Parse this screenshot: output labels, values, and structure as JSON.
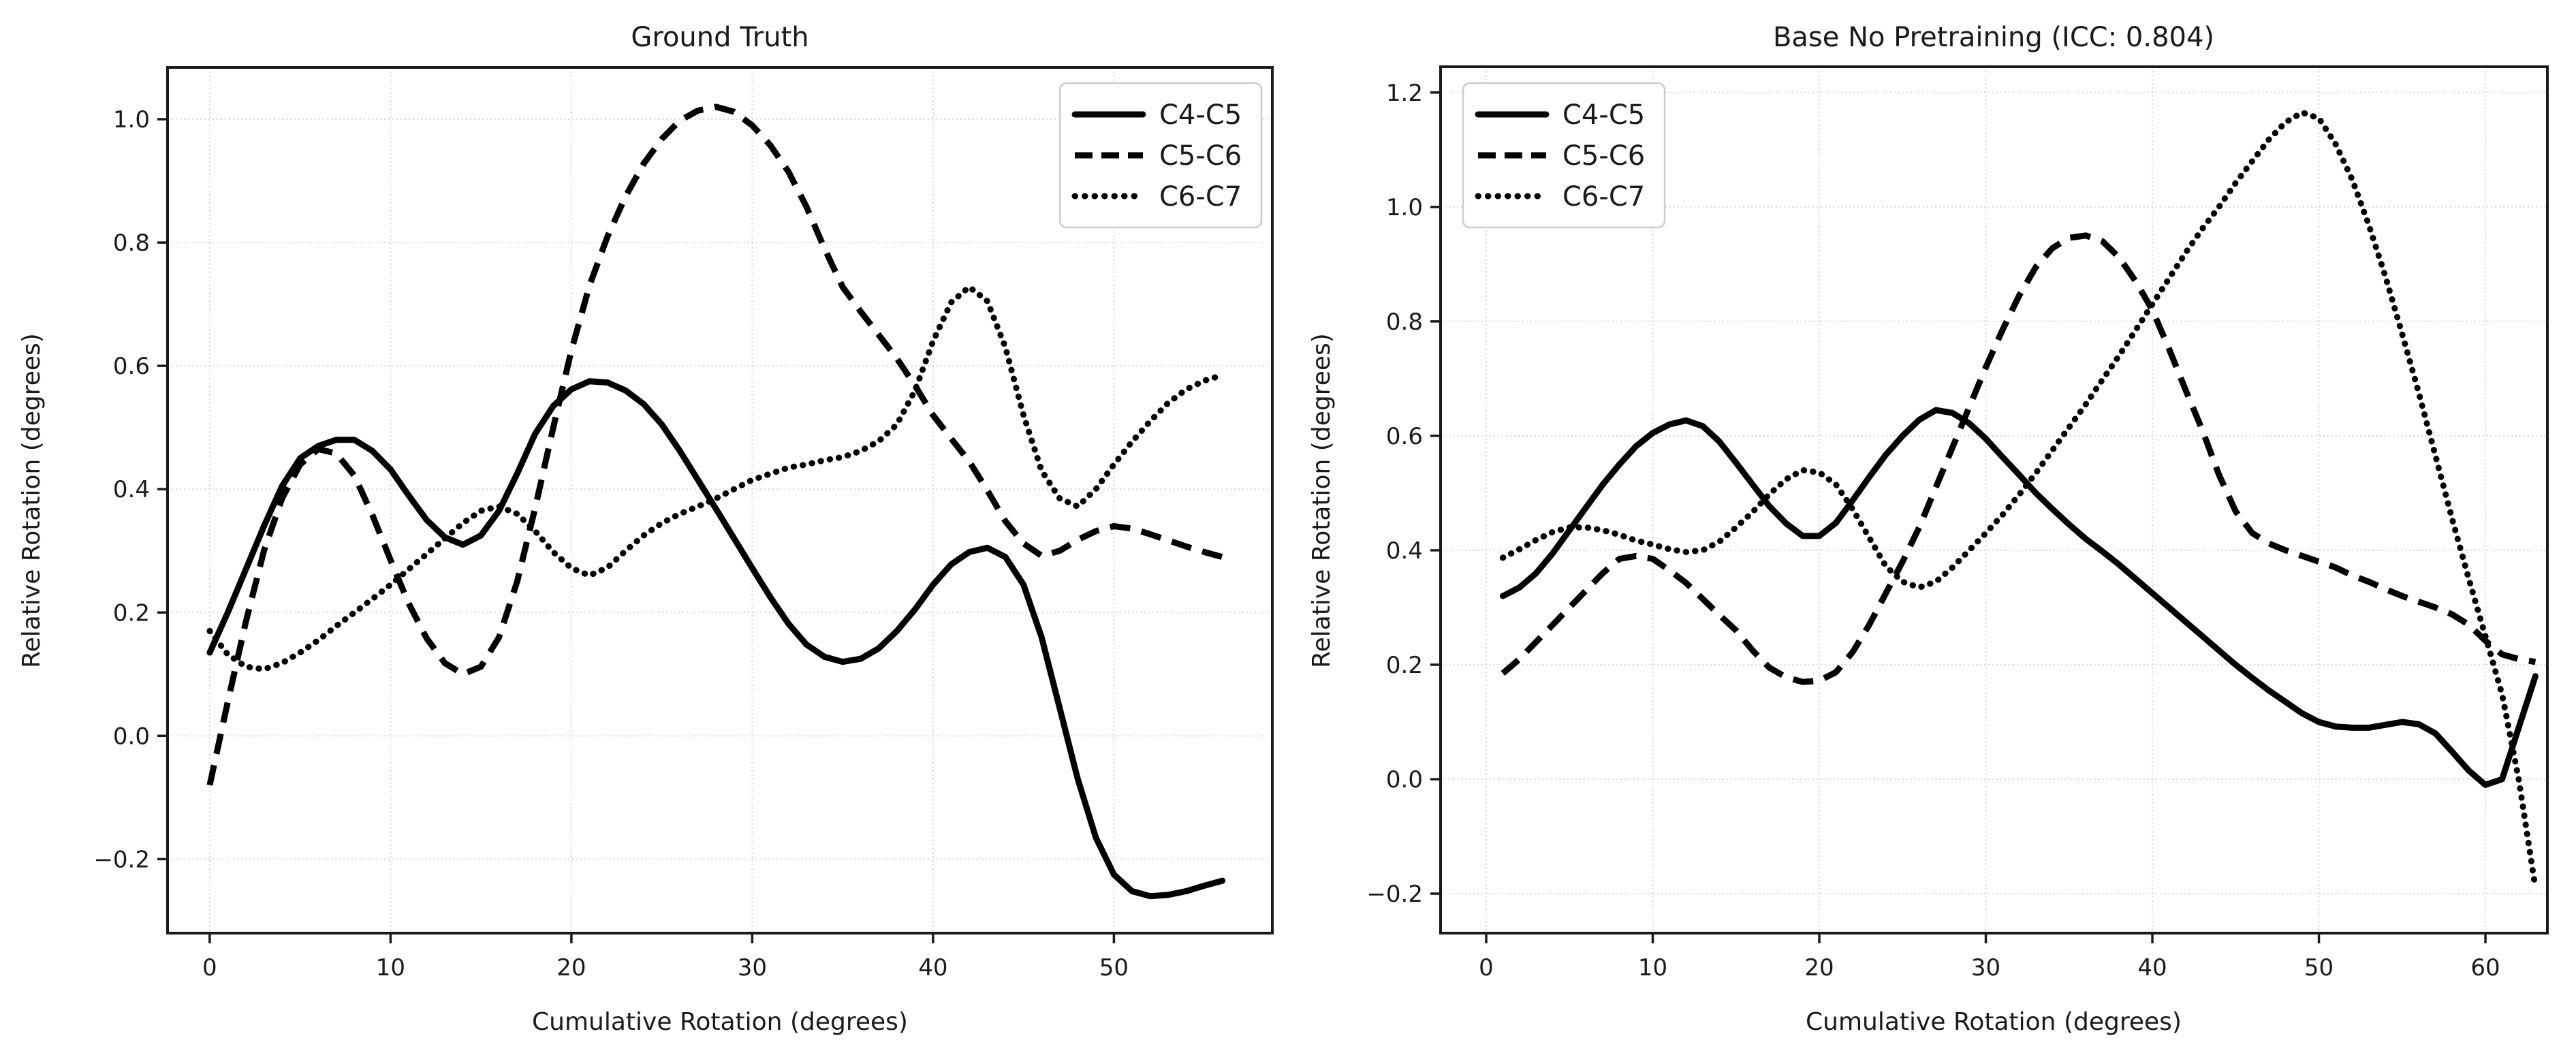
{
  "figure": {
    "background": "#ffffff",
    "text_color": "#1a1a1a",
    "line_color": "#000000",
    "grid_color": "#d7d7d7",
    "spine_color": "#1a1a1a",
    "legend_border_color": "#cccccc"
  },
  "chart_data": [
    {
      "type": "line",
      "title": "Ground Truth",
      "xlabel": "Cumulative Rotation (degrees)",
      "ylabel": "Relative Rotation (degrees)",
      "grid": true,
      "legend_position": "top-right",
      "xlim": [
        -2.33,
        58.76
      ],
      "ylim": [
        -0.32,
        1.084
      ],
      "xticks": [
        0,
        10,
        20,
        30,
        40,
        50
      ],
      "xtick_labels": [
        "0",
        "10",
        "20",
        "30",
        "40",
        "50"
      ],
      "yticks": [
        -0.2,
        0.0,
        0.2,
        0.4,
        0.6,
        0.8,
        1.0
      ],
      "ytick_labels": [
        "−0.2",
        "0.0",
        "0.2",
        "0.4",
        "0.6",
        "0.8",
        "1.0"
      ],
      "series": [
        {
          "name": "C4-C5",
          "style": "solid",
          "x": [
            0,
            1,
            2,
            3,
            4,
            5,
            6,
            7,
            8,
            9,
            10,
            11,
            12,
            13,
            14,
            15,
            16,
            17,
            18,
            19,
            20,
            21,
            22,
            23,
            24,
            25,
            26,
            27,
            28,
            29,
            30,
            31,
            32,
            33,
            34,
            35,
            36,
            37,
            38,
            39,
            40,
            41,
            42,
            43,
            44,
            45,
            46,
            47,
            48,
            49,
            50,
            51,
            52,
            53,
            54,
            55,
            56
          ],
          "y": [
            0.135,
            0.2,
            0.27,
            0.34,
            0.405,
            0.45,
            0.47,
            0.48,
            0.48,
            0.462,
            0.432,
            0.39,
            0.35,
            0.322,
            0.31,
            0.325,
            0.365,
            0.425,
            0.49,
            0.535,
            0.562,
            0.575,
            0.573,
            0.56,
            0.538,
            0.505,
            0.462,
            0.415,
            0.368,
            0.32,
            0.272,
            0.225,
            0.182,
            0.148,
            0.128,
            0.12,
            0.125,
            0.142,
            0.17,
            0.205,
            0.245,
            0.278,
            0.298,
            0.305,
            0.29,
            0.245,
            0.16,
            0.045,
            -0.07,
            -0.165,
            -0.225,
            -0.252,
            -0.26,
            -0.258,
            -0.252,
            -0.243,
            -0.235
          ]
        },
        {
          "name": "C5-C6",
          "style": "dashed",
          "x": [
            0,
            1,
            2,
            3,
            4,
            5,
            6,
            7,
            8,
            9,
            10,
            11,
            12,
            13,
            14,
            15,
            16,
            17,
            18,
            19,
            20,
            21,
            22,
            23,
            24,
            25,
            26,
            27,
            28,
            29,
            30,
            31,
            32,
            33,
            34,
            35,
            36,
            37,
            38,
            39,
            40,
            41,
            42,
            43,
            44,
            45,
            46,
            47,
            48,
            49,
            50,
            51,
            52,
            53,
            54,
            55,
            56
          ],
          "y": [
            -0.08,
            0.055,
            0.185,
            0.3,
            0.385,
            0.44,
            0.465,
            0.458,
            0.422,
            0.358,
            0.285,
            0.215,
            0.158,
            0.118,
            0.1,
            0.112,
            0.16,
            0.25,
            0.37,
            0.5,
            0.625,
            0.73,
            0.81,
            0.875,
            0.928,
            0.968,
            0.998,
            1.014,
            1.02,
            1.012,
            0.99,
            0.958,
            0.915,
            0.858,
            0.79,
            0.728,
            0.688,
            0.65,
            0.612,
            0.568,
            0.52,
            0.482,
            0.445,
            0.398,
            0.348,
            0.312,
            0.292,
            0.3,
            0.318,
            0.332,
            0.34,
            0.336,
            0.327,
            0.317,
            0.307,
            0.298,
            0.29
          ]
        },
        {
          "name": "C6-C7",
          "style": "dotted",
          "x": [
            0,
            1,
            2,
            3,
            4,
            5,
            6,
            7,
            8,
            9,
            10,
            11,
            12,
            13,
            14,
            15,
            16,
            17,
            18,
            19,
            20,
            21,
            22,
            23,
            24,
            25,
            26,
            27,
            28,
            29,
            30,
            31,
            32,
            33,
            34,
            35,
            36,
            37,
            38,
            39,
            40,
            41,
            42,
            43,
            44,
            45,
            46,
            47,
            48,
            49,
            50,
            51,
            52,
            53,
            54,
            55,
            56
          ],
          "y": [
            0.17,
            0.132,
            0.112,
            0.108,
            0.118,
            0.135,
            0.155,
            0.178,
            0.2,
            0.222,
            0.245,
            0.27,
            0.295,
            0.32,
            0.345,
            0.365,
            0.372,
            0.36,
            0.332,
            0.298,
            0.272,
            0.26,
            0.273,
            0.3,
            0.325,
            0.345,
            0.36,
            0.372,
            0.385,
            0.4,
            0.415,
            0.425,
            0.435,
            0.44,
            0.447,
            0.452,
            0.462,
            0.478,
            0.505,
            0.56,
            0.64,
            0.703,
            0.728,
            0.705,
            0.63,
            0.52,
            0.43,
            0.385,
            0.372,
            0.4,
            0.44,
            0.477,
            0.51,
            0.54,
            0.562,
            0.576,
            0.585
          ]
        }
      ]
    },
    {
      "type": "line",
      "title": "Base No Pretraining (ICC: 0.804)",
      "xlabel": "Cumulative Rotation (degrees)",
      "ylabel": "Relative Rotation (degrees)",
      "grid": true,
      "legend_position": "top-left",
      "xlim": [
        -2.74,
        63.72
      ],
      "ylim": [
        -0.269,
        1.245
      ],
      "xticks": [
        0,
        10,
        20,
        30,
        40,
        50,
        60
      ],
      "xtick_labels": [
        "0",
        "10",
        "20",
        "30",
        "40",
        "50",
        "60"
      ],
      "yticks": [
        -0.2,
        0.0,
        0.2,
        0.4,
        0.6,
        0.8,
        1.0,
        1.2
      ],
      "ytick_labels": [
        "−0.2",
        "0.0",
        "0.2",
        "0.4",
        "0.6",
        "0.8",
        "1.0",
        "1.2"
      ],
      "series": [
        {
          "name": "C4-C5",
          "style": "solid",
          "x": [
            1,
            2,
            3,
            4,
            5,
            6,
            7,
            8,
            9,
            10,
            11,
            12,
            13,
            14,
            15,
            16,
            17,
            18,
            19,
            20,
            21,
            22,
            23,
            24,
            25,
            26,
            27,
            28,
            29,
            30,
            31,
            32,
            33,
            34,
            35,
            36,
            37,
            38,
            39,
            40,
            41,
            42,
            43,
            44,
            45,
            46,
            47,
            48,
            49,
            50,
            51,
            52,
            53,
            54,
            55,
            56,
            57,
            58,
            59,
            60,
            61,
            62,
            63
          ],
          "y": [
            0.32,
            0.335,
            0.36,
            0.395,
            0.435,
            0.475,
            0.515,
            0.55,
            0.582,
            0.605,
            0.62,
            0.627,
            0.617,
            0.59,
            0.553,
            0.515,
            0.477,
            0.447,
            0.425,
            0.425,
            0.448,
            0.487,
            0.528,
            0.567,
            0.6,
            0.628,
            0.645,
            0.64,
            0.622,
            0.595,
            0.563,
            0.532,
            0.5,
            0.472,
            0.445,
            0.42,
            0.398,
            0.375,
            0.35,
            0.325,
            0.3,
            0.275,
            0.25,
            0.225,
            0.2,
            0.177,
            0.155,
            0.135,
            0.115,
            0.1,
            0.092,
            0.09,
            0.09,
            0.095,
            0.1,
            0.096,
            0.08,
            0.048,
            0.015,
            -0.01,
            0.0,
            0.09,
            0.18
          ]
        },
        {
          "name": "C5-C6",
          "style": "dashed",
          "x": [
            1,
            2,
            3,
            4,
            5,
            6,
            7,
            8,
            9,
            10,
            11,
            12,
            13,
            14,
            15,
            16,
            17,
            18,
            19,
            20,
            21,
            22,
            23,
            24,
            25,
            26,
            27,
            28,
            29,
            30,
            31,
            32,
            33,
            34,
            35,
            36,
            37,
            38,
            39,
            40,
            41,
            42,
            43,
            44,
            45,
            46,
            47,
            48,
            49,
            50,
            51,
            52,
            53,
            54,
            55,
            56,
            57,
            58,
            59,
            60,
            61,
            62,
            63
          ],
          "y": [
            0.185,
            0.21,
            0.24,
            0.27,
            0.3,
            0.33,
            0.36,
            0.385,
            0.39,
            0.385,
            0.365,
            0.343,
            0.315,
            0.287,
            0.26,
            0.225,
            0.195,
            0.178,
            0.17,
            0.172,
            0.187,
            0.222,
            0.27,
            0.325,
            0.38,
            0.44,
            0.51,
            0.58,
            0.65,
            0.72,
            0.785,
            0.845,
            0.895,
            0.928,
            0.946,
            0.95,
            0.94,
            0.912,
            0.87,
            0.82,
            0.752,
            0.68,
            0.61,
            0.532,
            0.468,
            0.43,
            0.412,
            0.4,
            0.39,
            0.38,
            0.37,
            0.356,
            0.345,
            0.332,
            0.32,
            0.31,
            0.3,
            0.288,
            0.27,
            0.242,
            0.218,
            0.21,
            0.205
          ]
        },
        {
          "name": "C6-C7",
          "style": "dotted",
          "x": [
            1,
            2,
            3,
            4,
            5,
            6,
            7,
            8,
            9,
            10,
            11,
            12,
            13,
            14,
            15,
            16,
            17,
            18,
            19,
            20,
            21,
            22,
            23,
            24,
            25,
            26,
            27,
            28,
            29,
            30,
            31,
            32,
            33,
            34,
            35,
            36,
            37,
            38,
            39,
            40,
            41,
            42,
            43,
            44,
            45,
            46,
            47,
            48,
            49,
            50,
            51,
            52,
            53,
            54,
            55,
            56,
            57,
            58,
            59,
            60,
            61,
            62,
            63
          ],
          "y": [
            0.387,
            0.402,
            0.418,
            0.432,
            0.44,
            0.44,
            0.435,
            0.427,
            0.417,
            0.41,
            0.402,
            0.397,
            0.4,
            0.415,
            0.44,
            0.467,
            0.498,
            0.524,
            0.54,
            0.536,
            0.515,
            0.472,
            0.422,
            0.372,
            0.345,
            0.335,
            0.345,
            0.37,
            0.4,
            0.43,
            0.462,
            0.497,
            0.535,
            0.575,
            0.615,
            0.655,
            0.698,
            0.74,
            0.785,
            0.83,
            0.875,
            0.92,
            0.962,
            1.0,
            1.042,
            1.08,
            1.118,
            1.148,
            1.165,
            1.155,
            1.11,
            1.048,
            0.968,
            0.878,
            0.778,
            0.675,
            0.565,
            0.455,
            0.35,
            0.25,
            0.148,
            0.0,
            -0.19
          ]
        }
      ]
    }
  ]
}
